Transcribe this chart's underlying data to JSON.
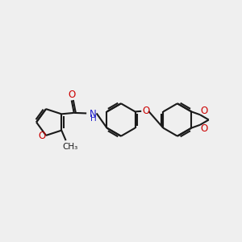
{
  "bg_color": "#efefef",
  "bond_color": "#1a1a1a",
  "oxygen_color": "#cc0000",
  "nitrogen_color": "#2222cc",
  "lw": 1.5,
  "fs": 8.5,
  "xlim": [
    0,
    10
  ],
  "ylim": [
    1,
    9
  ]
}
